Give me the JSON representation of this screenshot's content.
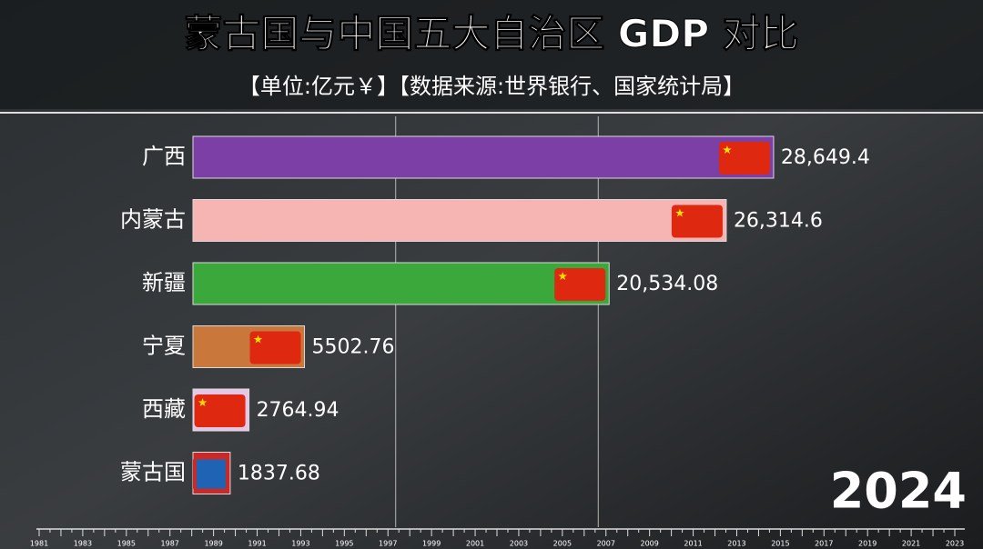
{
  "chart_data": {
    "type": "bar",
    "orientation": "horizontal",
    "title": "蒙古国与中国五大自治区 GDP 对比",
    "subtitle": "【单位:亿元￥】【数据来源:世界银行、国家统计局】",
    "categories": [
      "广西",
      "内蒙古",
      "新疆",
      "宁夏",
      "西藏",
      "蒙古国"
    ],
    "values": [
      28649.4,
      26314.6,
      20534.08,
      5502.76,
      2764.94,
      1837.68
    ],
    "value_labels": [
      "28,649.4",
      "26,314.6",
      "20,534.08",
      "5502.76",
      "2764.94",
      "1837.68"
    ],
    "colors": [
      "#7b3fa6",
      "#f6b4b2",
      "#3aa83a",
      "#c9773a",
      "#e6c6e6",
      "#c82a2a"
    ],
    "xlim": [
      0,
      30000
    ],
    "xticks": [
      10000,
      20000
    ],
    "tick_labels": false,
    "grid": true,
    "year": "2024",
    "timeline": [
      "1981",
      "1983",
      "1985",
      "1987",
      "1989",
      "1991",
      "1993",
      "1995",
      "1997",
      "1999",
      "2001",
      "2003",
      "2005",
      "2007",
      "2009",
      "2011",
      "2013",
      "2015",
      "2017",
      "2019",
      "2021",
      "2023"
    ]
  }
}
